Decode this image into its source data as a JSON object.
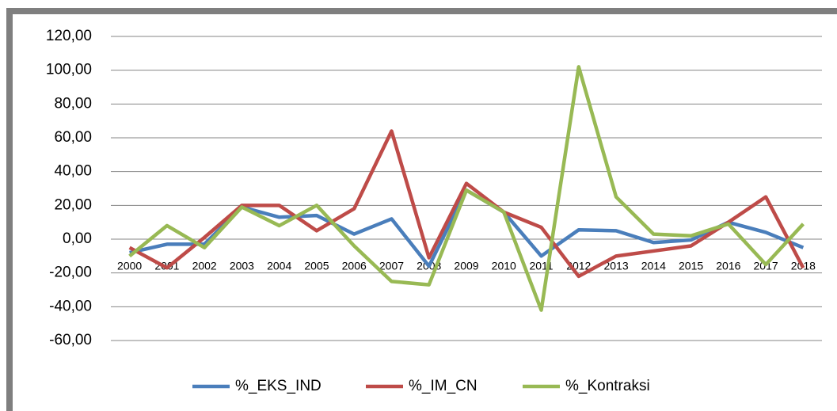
{
  "chart_data": {
    "type": "line",
    "categories": [
      "2000",
      "2001",
      "2002",
      "2003",
      "2004",
      "2005",
      "2006",
      "2007",
      "2008",
      "2009",
      "2010",
      "2011",
      "2012",
      "2013",
      "2014",
      "2015",
      "2016",
      "2017",
      "2018"
    ],
    "series": [
      {
        "name": "%_EKS_IND",
        "color": "#4a7ebb",
        "values": [
          -8,
          -3,
          -3,
          19,
          13,
          14,
          3,
          12,
          -16,
          29,
          16,
          -10,
          5.5,
          5,
          -2,
          -0.5,
          10,
          4,
          -5
        ]
      },
      {
        "name": "%_IM_CN",
        "color": "#be4b48",
        "values": [
          -5,
          -17,
          1,
          20,
          20,
          5,
          18,
          64,
          -11,
          33,
          16,
          7,
          -22,
          -10,
          -7,
          -4,
          10,
          25,
          -17
        ]
      },
      {
        "name": "%_Kontraksi",
        "color": "#98b954",
        "values": [
          -10,
          8,
          -5,
          19,
          8,
          20,
          -4,
          -25,
          -27,
          29,
          16,
          -42,
          102,
          25,
          3,
          2,
          9,
          -15,
          9
        ]
      }
    ],
    "ylim": [
      -60,
      120
    ],
    "yticks": [
      {
        "value": -60,
        "label": "-60,00"
      },
      {
        "value": -40,
        "label": "-40,00"
      },
      {
        "value": -20,
        "label": "-20,00"
      },
      {
        "value": 0,
        "label": "0,00"
      },
      {
        "value": 20,
        "label": "20,00"
      },
      {
        "value": 40,
        "label": "40,00"
      },
      {
        "value": 60,
        "label": "60,00"
      },
      {
        "value": 80,
        "label": "80,00"
      },
      {
        "value": 100,
        "label": "100,00"
      },
      {
        "value": 120,
        "label": "120,00"
      }
    ],
    "grid": true,
    "legend": "bottom"
  }
}
